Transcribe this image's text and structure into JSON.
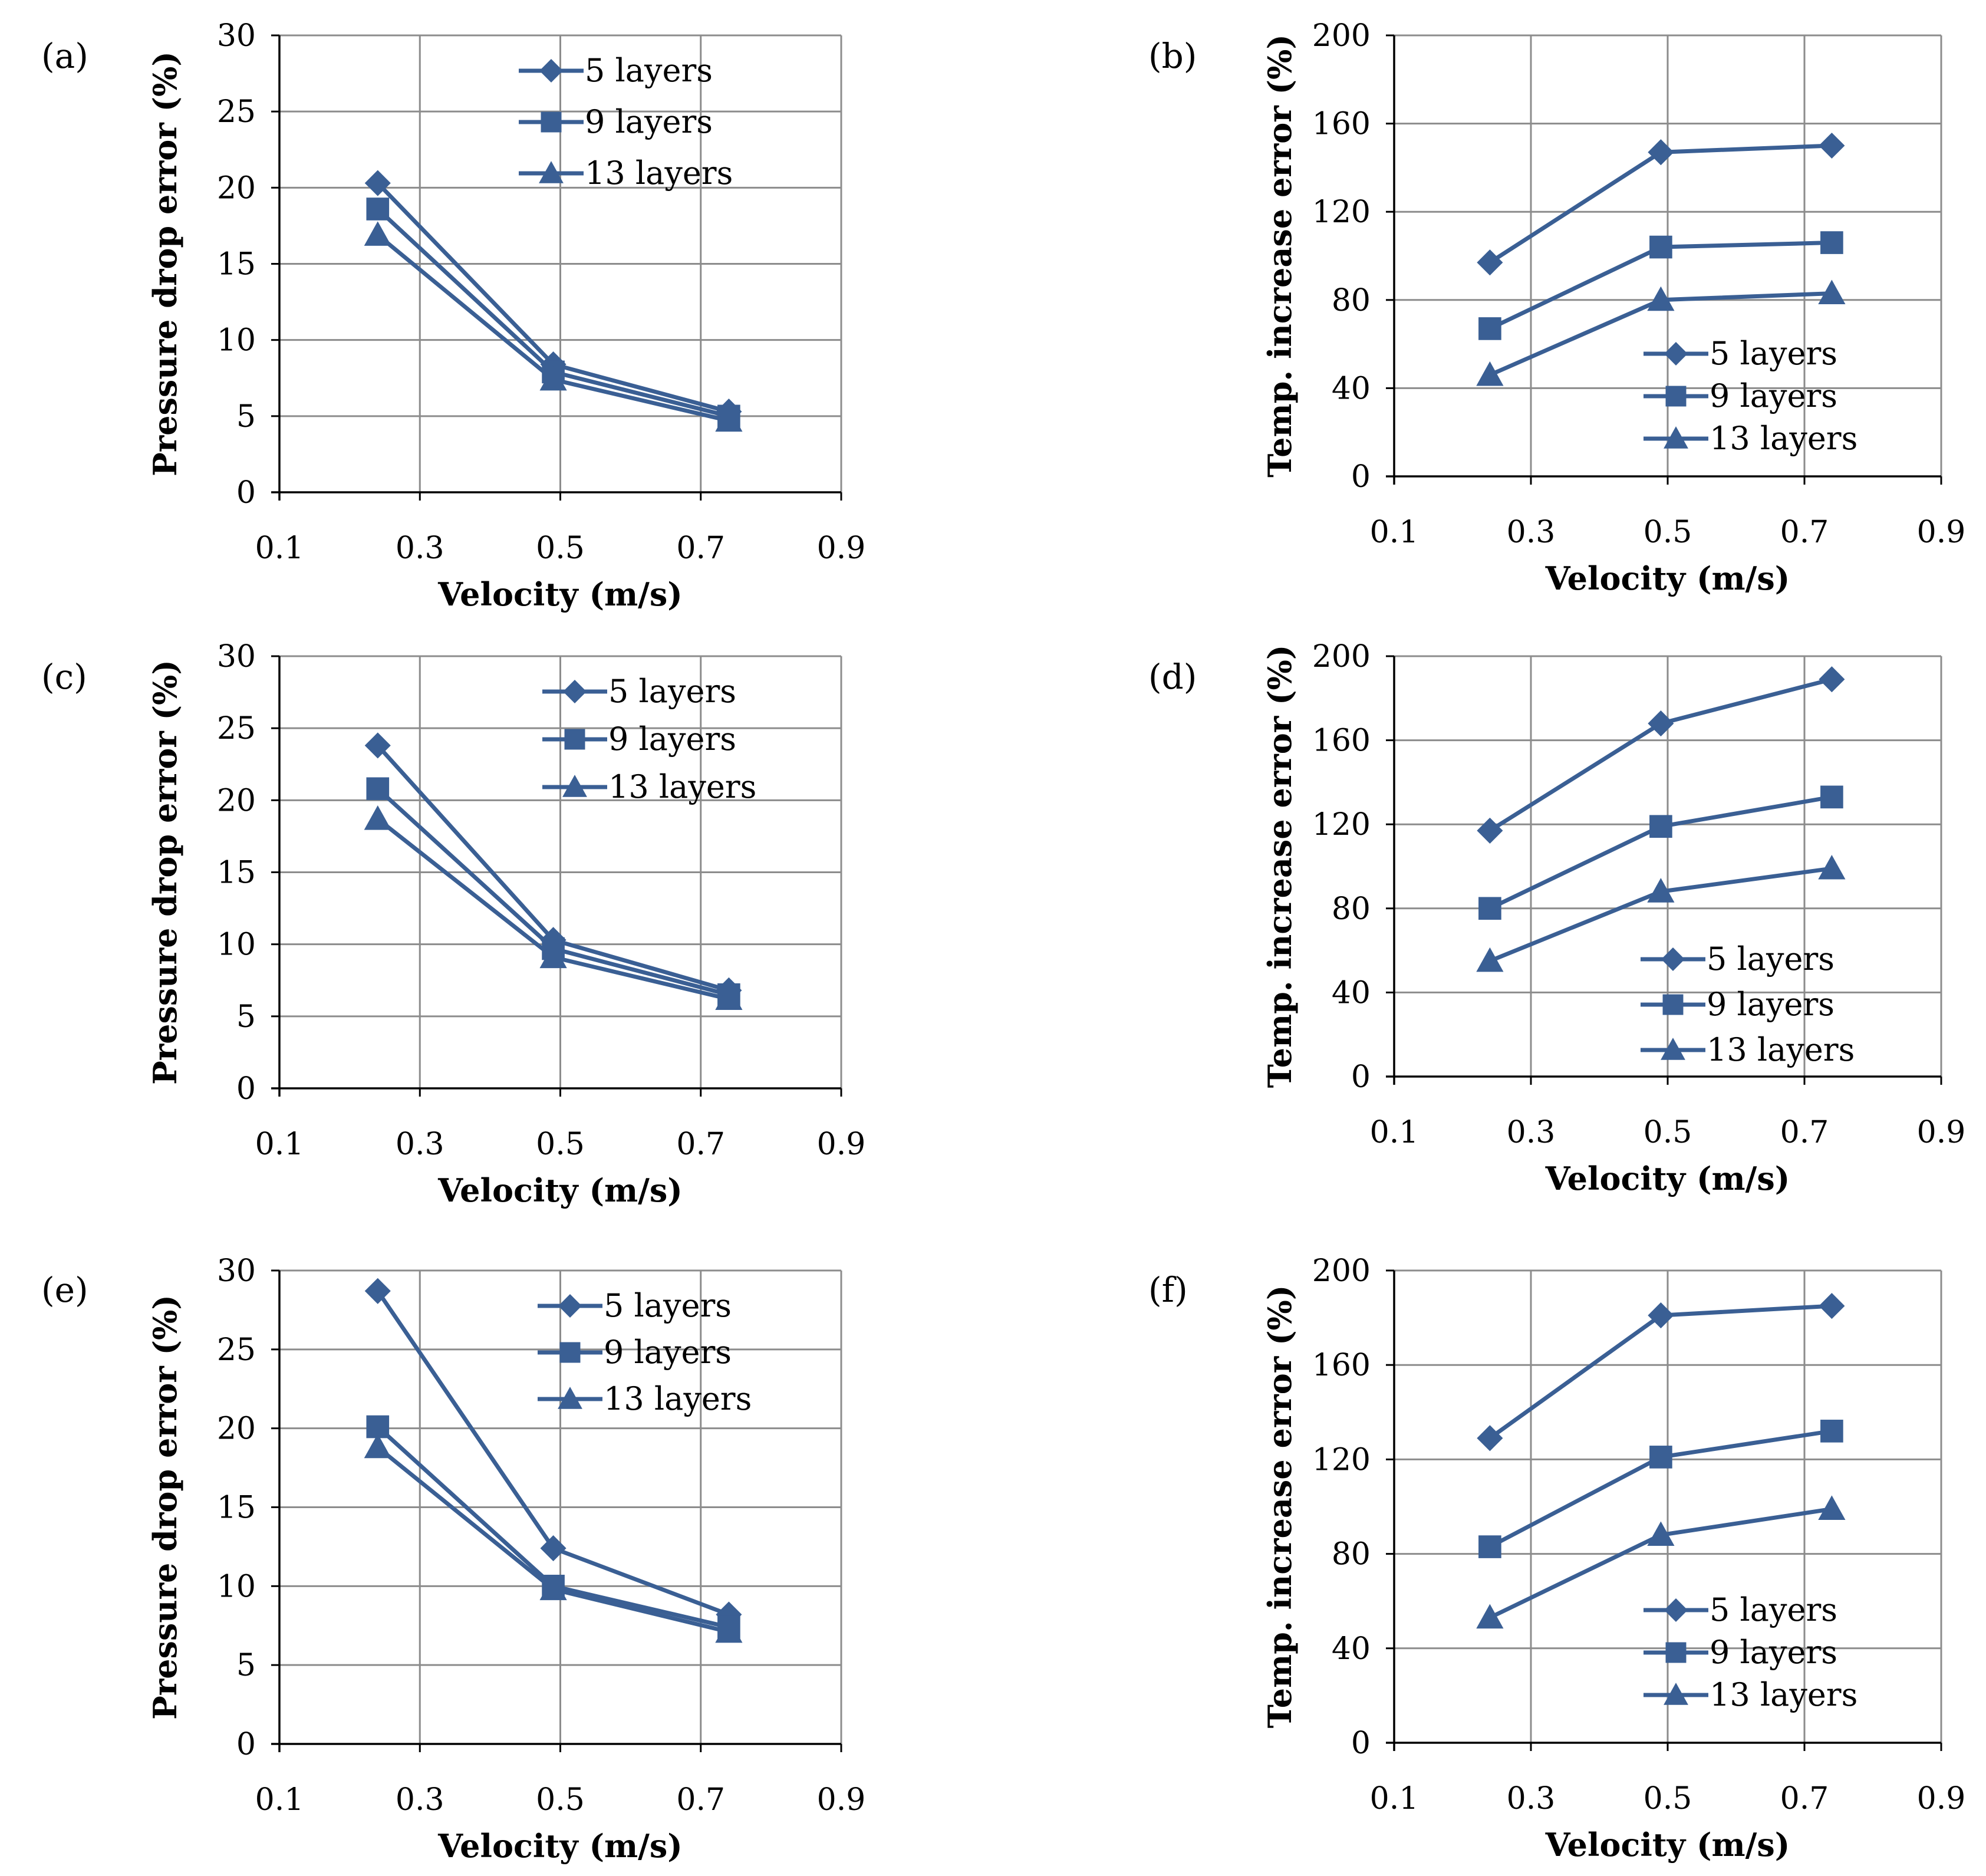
{
  "figure": {
    "series_color": "#3A5F94",
    "grid_color": "#8C8C8C",
    "axis_color": "#000000"
  },
  "chart_data": [
    {
      "panel_label": "(a)",
      "type": "line",
      "x": [
        0.24,
        0.49,
        0.74
      ],
      "series": [
        {
          "name": "5 layers",
          "marker": "diamond",
          "values": [
            20.3,
            8.4,
            5.3
          ]
        },
        {
          "name": "9 layers",
          "marker": "square",
          "values": [
            18.6,
            7.9,
            5.0
          ]
        },
        {
          "name": "13 layers",
          "marker": "triangle",
          "values": [
            16.9,
            7.4,
            4.7
          ]
        }
      ],
      "xlabel": "Velocity  (m/s)",
      "ylabel": "Pressure drop error  (%)",
      "xlim": [
        0.1,
        0.9
      ],
      "ylim": [
        0,
        30
      ],
      "xticks": [
        0.1,
        0.3,
        0.5,
        0.7,
        0.9
      ],
      "xtick_labels": [
        "0.1",
        "0.3",
        "0.5",
        "0.7",
        "0.9"
      ],
      "yticks": [
        0,
        5,
        10,
        15,
        20,
        25,
        30
      ],
      "ytick_labels": [
        "0",
        "5",
        "10",
        "15",
        "20",
        "25",
        "30"
      ],
      "legend": "top-right",
      "grid": true
    },
    {
      "panel_label": "(b)",
      "type": "line",
      "x": [
        0.24,
        0.49,
        0.74
      ],
      "series": [
        {
          "name": "5 layers",
          "marker": "diamond",
          "values": [
            97,
            147,
            150
          ]
        },
        {
          "name": "9 layers",
          "marker": "square",
          "values": [
            67,
            104,
            106
          ]
        },
        {
          "name": "13 layers",
          "marker": "triangle",
          "values": [
            46,
            80,
            83
          ]
        }
      ],
      "xlabel": "Velocity  (m/s)",
      "ylabel": "Temp. increase error  (%)",
      "xlim": [
        0.1,
        0.9
      ],
      "ylim": [
        0,
        200
      ],
      "xticks": [
        0.1,
        0.3,
        0.5,
        0.7,
        0.9
      ],
      "xtick_labels": [
        "0.1",
        "0.3",
        "0.5",
        "0.7",
        "0.9"
      ],
      "yticks": [
        0,
        40,
        80,
        120,
        160,
        200
      ],
      "ytick_labels": [
        "0",
        "40",
        "80",
        "120",
        "160",
        "200"
      ],
      "legend": "bottom-right",
      "grid": true
    },
    {
      "panel_label": "(c)",
      "type": "line",
      "x": [
        0.24,
        0.49,
        0.74
      ],
      "series": [
        {
          "name": "5 layers",
          "marker": "diamond",
          "values": [
            23.8,
            10.3,
            6.8
          ]
        },
        {
          "name": "9 layers",
          "marker": "square",
          "values": [
            20.8,
            9.7,
            6.5
          ]
        },
        {
          "name": "13 layers",
          "marker": "triangle",
          "values": [
            18.7,
            9.1,
            6.2
          ]
        }
      ],
      "xlabel": "Velocity  (m/s)",
      "ylabel": "Pressure drop error  (%)",
      "xlim": [
        0.1,
        0.9
      ],
      "ylim": [
        0,
        30
      ],
      "xticks": [
        0.1,
        0.3,
        0.5,
        0.7,
        0.9
      ],
      "xtick_labels": [
        "0.1",
        "0.3",
        "0.5",
        "0.7",
        "0.9"
      ],
      "yticks": [
        0,
        5,
        10,
        15,
        20,
        25,
        30
      ],
      "ytick_labels": [
        "0",
        "5",
        "10",
        "15",
        "20",
        "25",
        "30"
      ],
      "legend": "top-right",
      "grid": true
    },
    {
      "panel_label": "(d)",
      "type": "line",
      "x": [
        0.24,
        0.49,
        0.74
      ],
      "series": [
        {
          "name": "5 layers",
          "marker": "diamond",
          "values": [
            117,
            168,
            189
          ]
        },
        {
          "name": "9 layers",
          "marker": "square",
          "values": [
            80,
            119,
            133
          ]
        },
        {
          "name": "13 layers",
          "marker": "triangle",
          "values": [
            55,
            88,
            99
          ]
        }
      ],
      "xlabel": "Velocity  (m/s)",
      "ylabel": "Temp. increase error  (%)",
      "xlim": [
        0.1,
        0.9
      ],
      "ylim": [
        0,
        200
      ],
      "xticks": [
        0.1,
        0.3,
        0.5,
        0.7,
        0.9
      ],
      "xtick_labels": [
        "0.1",
        "0.3",
        "0.5",
        "0.7",
        "0.9"
      ],
      "yticks": [
        0,
        40,
        80,
        120,
        160,
        200
      ],
      "ytick_labels": [
        "0",
        "40",
        "80",
        "120",
        "160",
        "200"
      ],
      "legend": "bottom-right",
      "grid": true
    },
    {
      "panel_label": "(e)",
      "type": "line",
      "x": [
        0.24,
        0.49,
        0.74
      ],
      "series": [
        {
          "name": "5 layers",
          "marker": "diamond",
          "values": [
            28.7,
            12.4,
            8.2
          ]
        },
        {
          "name": "9 layers",
          "marker": "square",
          "values": [
            20.1,
            10.0,
            7.4
          ]
        },
        {
          "name": "13 layers",
          "marker": "triangle",
          "values": [
            18.8,
            9.8,
            7.1
          ]
        }
      ],
      "xlabel": "Velocity  (m/s)",
      "ylabel": "Pressure drop error  (%)",
      "xlim": [
        0.1,
        0.9
      ],
      "ylim": [
        0,
        30
      ],
      "xticks": [
        0.1,
        0.3,
        0.5,
        0.7,
        0.9
      ],
      "xtick_labels": [
        "0.1",
        "0.3",
        "0.5",
        "0.7",
        "0.9"
      ],
      "yticks": [
        0,
        5,
        10,
        15,
        20,
        25,
        30
      ],
      "ytick_labels": [
        "0",
        "5",
        "10",
        "15",
        "20",
        "25",
        "30"
      ],
      "legend": "top-right",
      "grid": true
    },
    {
      "panel_label": "(f)",
      "type": "line",
      "x": [
        0.24,
        0.49,
        0.74
      ],
      "series": [
        {
          "name": "5 layers",
          "marker": "diamond",
          "values": [
            129,
            181,
            185
          ]
        },
        {
          "name": "9 layers",
          "marker": "square",
          "values": [
            83,
            121,
            132
          ]
        },
        {
          "name": "13 layers",
          "marker": "triangle",
          "values": [
            53,
            88,
            99
          ]
        }
      ],
      "xlabel": "Velocity  (m/s)",
      "ylabel": "Temp. increase error  (%)",
      "xlim": [
        0.1,
        0.9
      ],
      "ylim": [
        0,
        200
      ],
      "xticks": [
        0.1,
        0.3,
        0.5,
        0.7,
        0.9
      ],
      "xtick_labels": [
        "0.1",
        "0.3",
        "0.5",
        "0.7",
        "0.9"
      ],
      "yticks": [
        0,
        40,
        80,
        120,
        160,
        200
      ],
      "ytick_labels": [
        "0",
        "40",
        "80",
        "120",
        "160",
        "200"
      ],
      "legend": "bottom-right",
      "grid": true
    }
  ]
}
